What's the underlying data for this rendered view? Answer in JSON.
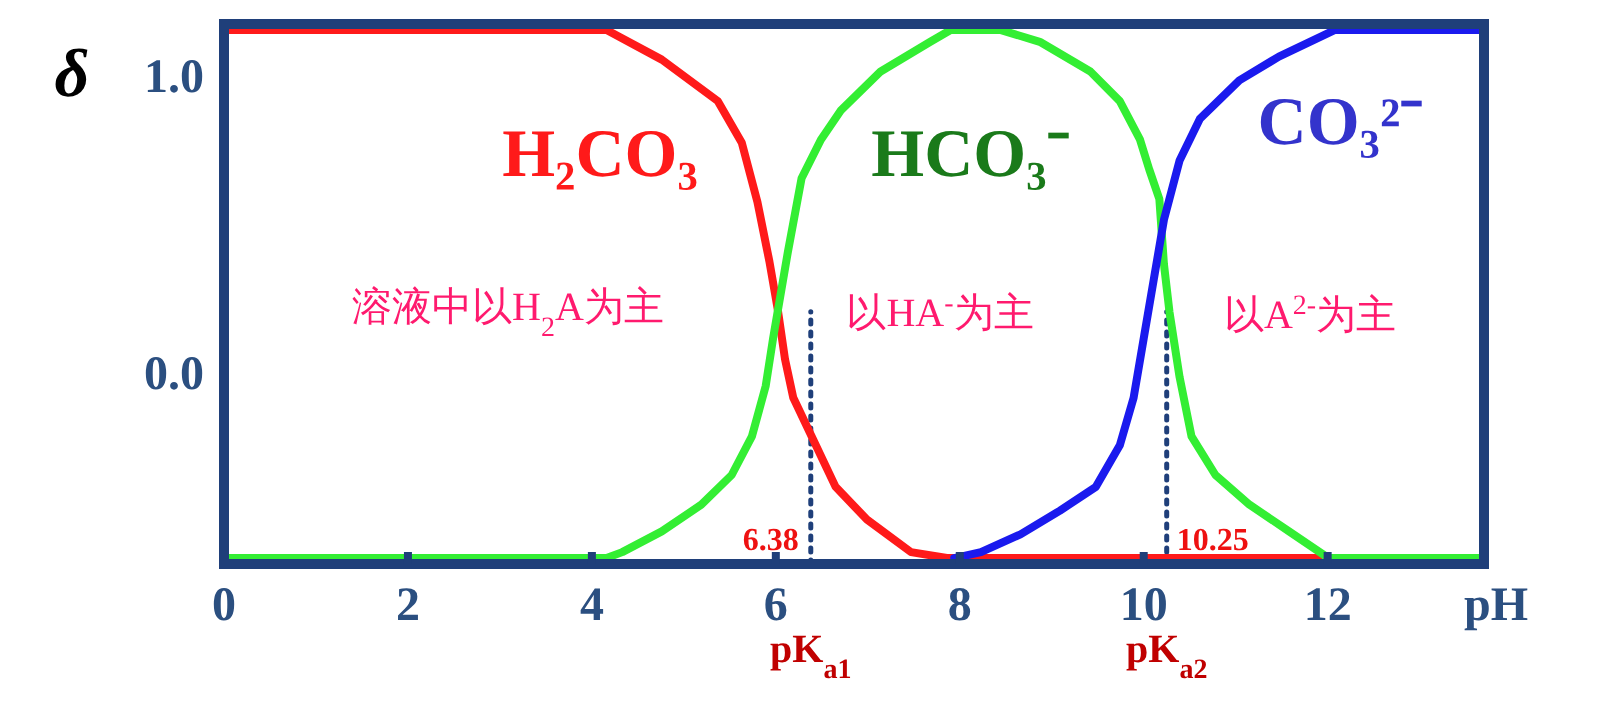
{
  "chart_data": {
    "type": "line",
    "ylabel": "δ",
    "xlabel": "pH",
    "xlim": [
      0,
      13.7
    ],
    "ylim": [
      -0.65,
      1.17
    ],
    "xticks": [
      0,
      2,
      4,
      6,
      8,
      10,
      12
    ],
    "yticks": [
      {
        "value": 0,
        "label": "0.0"
      },
      {
        "value": 1,
        "label": "1.0"
      }
    ],
    "series": [
      {
        "name": "H₂CO₃",
        "color": "#ff1a1a",
        "x": [
          0,
          4.16,
          4.76,
          5.37,
          5.63,
          5.8,
          5.93,
          6.02,
          6.1,
          6.19,
          6.39,
          6.65,
          6.99,
          7.47,
          7.86,
          11.9
        ],
        "values": [
          1.15,
          1.15,
          1.05,
          0.91,
          0.77,
          0.57,
          0.37,
          0.21,
          0.04,
          -0.09,
          -0.22,
          -0.39,
          -0.5,
          -0.61,
          -0.63,
          -0.63
        ]
      },
      {
        "name": "HCO₃⁻",
        "color": "#33ee33",
        "x": [
          0,
          4.16,
          4.33,
          4.76,
          5.19,
          5.52,
          5.74,
          5.89,
          5.97,
          6.13,
          6.28,
          6.49,
          6.71,
          7.14,
          7.68,
          7.9,
          8.44,
          8.87,
          9.42,
          9.74,
          9.96,
          10.06,
          10.17,
          10.22,
          10.28,
          10.39,
          10.52,
          10.78,
          11.15,
          11.58,
          12.01,
          13.68
        ],
        "values": [
          -0.63,
          -0.63,
          -0.61,
          -0.54,
          -0.45,
          -0.35,
          -0.22,
          -0.05,
          0.11,
          0.4,
          0.65,
          0.78,
          0.88,
          1.01,
          1.11,
          1.15,
          1.15,
          1.11,
          1.01,
          0.91,
          0.78,
          0.68,
          0.58,
          0.36,
          0.2,
          -0.02,
          -0.22,
          -0.35,
          -0.45,
          -0.54,
          -0.63,
          -0.63
        ]
      },
      {
        "name": "CO₃²⁻",
        "color": "#1a1aee",
        "x": [
          7.94,
          8.23,
          8.66,
          9.09,
          9.48,
          9.74,
          9.89,
          10.0,
          10.11,
          10.22,
          10.39,
          10.61,
          11.04,
          11.47,
          12.08,
          13.68
        ],
        "values": [
          -0.63,
          -0.61,
          -0.55,
          -0.47,
          -0.39,
          -0.25,
          -0.09,
          0.11,
          0.31,
          0.51,
          0.71,
          0.85,
          0.98,
          1.06,
          1.15,
          1.15
        ]
      }
    ],
    "ref_lines": [
      {
        "axis": "x",
        "value": 6.38,
        "label": "6.38",
        "color": "#1f3f7a",
        "line_style": "dotted"
      },
      {
        "axis": "x",
        "value": 10.25,
        "label": "10.25",
        "color": "#1f3f7a",
        "line_style": "dotted"
      }
    ],
    "annotations": [
      "溶液中以H$_{2}$A为主",
      "以HA$^{-}$为主",
      "以A$^{2-}$为主",
      "pK$_{a1}$",
      "pK$_{a2}$"
    ]
  }
}
